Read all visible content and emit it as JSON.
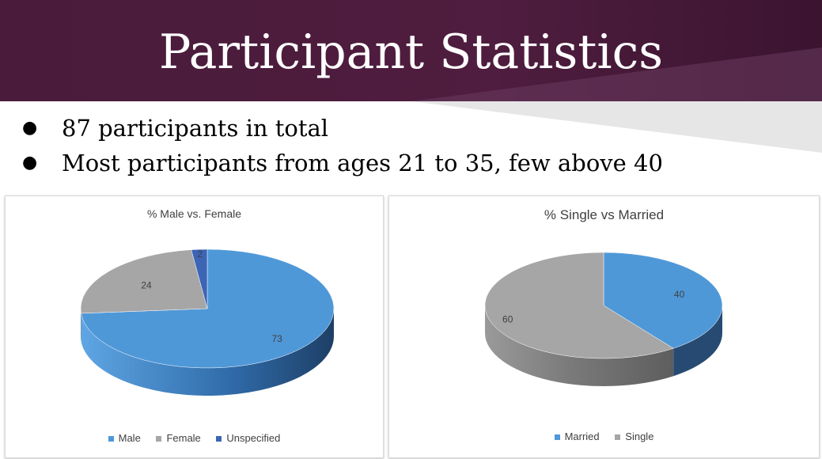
{
  "slide": {
    "title": "Participant Statistics",
    "bullets": [
      "87 participants in total",
      "Most participants from ages 21 to 35, few above 40"
    ]
  },
  "colors": {
    "banner": "#4f1d3f",
    "male": "#4f98d8",
    "female": "#a6a6a6",
    "unspecified": "#3d65b6",
    "married": "#4f98d8",
    "single": "#a6a6a6"
  },
  "chart_data": [
    {
      "type": "pie",
      "title": "% Male vs. Female",
      "categories": [
        "Male",
        "Female",
        "Unspecified"
      ],
      "values": [
        73,
        24,
        2
      ],
      "data_labels": [
        "73",
        "24",
        "2"
      ],
      "legend": "bottom",
      "style": "3d"
    },
    {
      "type": "pie",
      "title": "% Single vs Married",
      "categories": [
        "Married",
        "Single"
      ],
      "values": [
        40,
        60
      ],
      "data_labels": [
        "40",
        "60"
      ],
      "legend": "bottom",
      "style": "3d"
    }
  ]
}
